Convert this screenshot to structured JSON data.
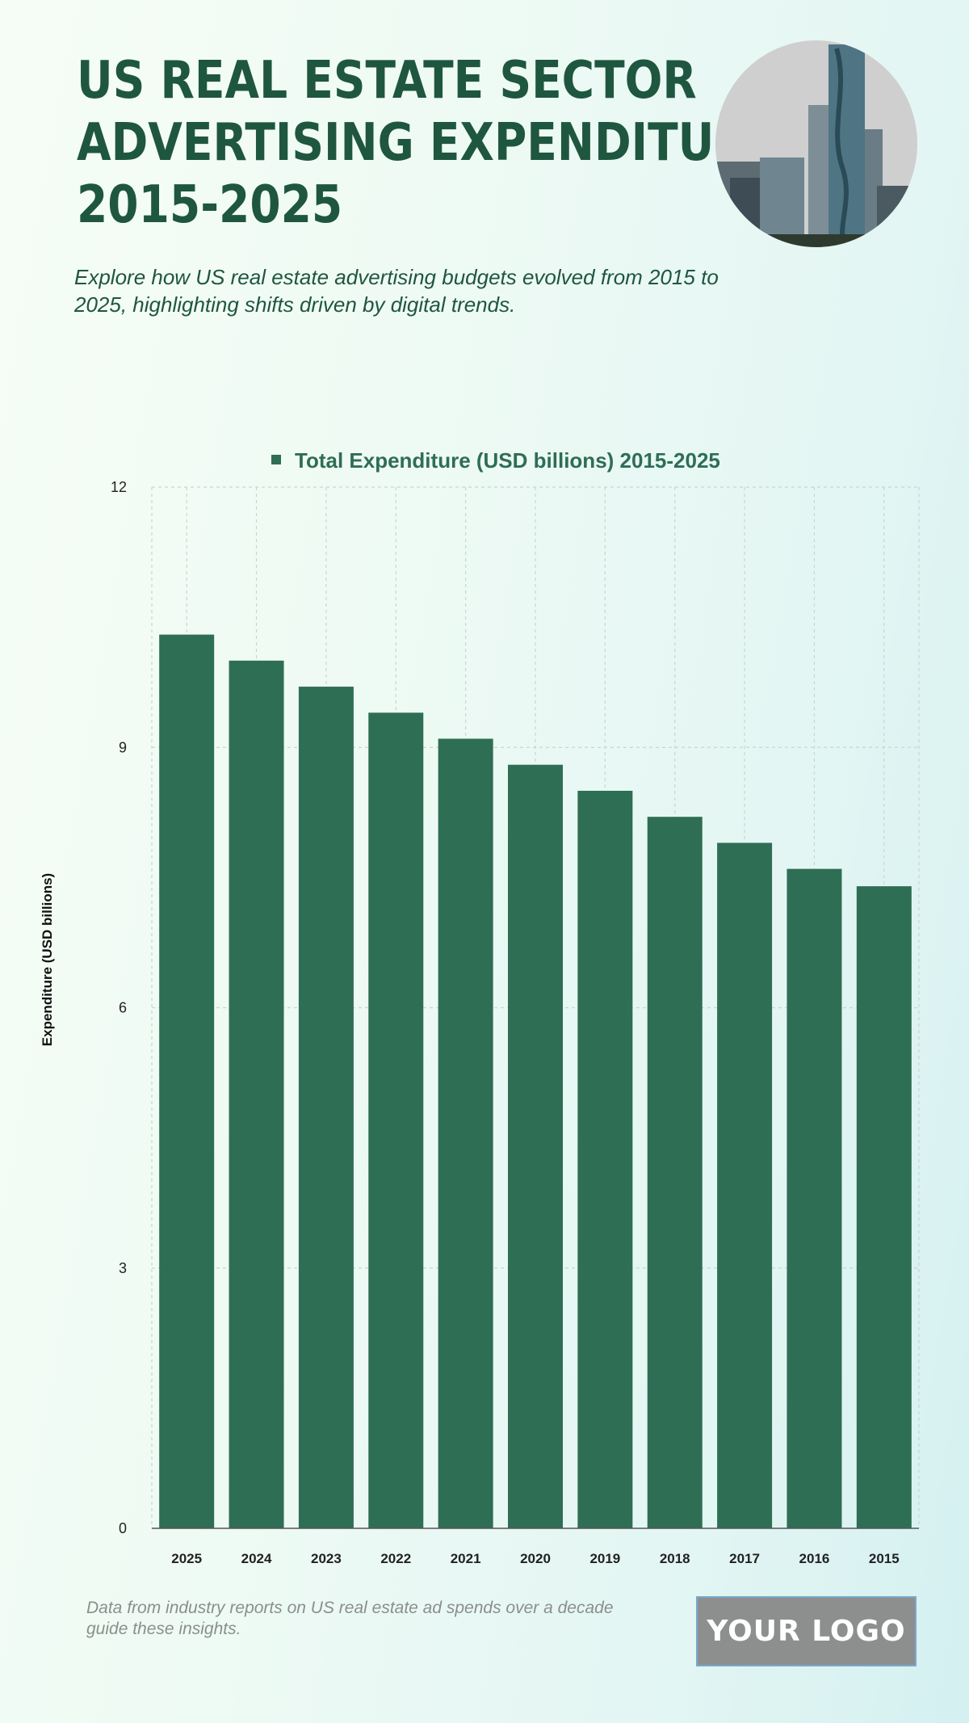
{
  "header": {
    "title_lines": [
      "US REAL ESTATE SECTOR",
      "ADVERTISING EXPENDITURE",
      "2015-2025"
    ],
    "subtitle": "Explore how US real estate advertising budgets evolved from 2015 to 2025, highlighting shifts driven by digital trends."
  },
  "footer": {
    "note": "Data from industry reports on US real estate ad spends over a decade guide these insights.",
    "logo_text": "YOUR LOGO"
  },
  "colors": {
    "bar": "#2e6e55",
    "title": "#1f5640",
    "grid": "#c9d6cf",
    "axis": "#555555"
  },
  "chart_data": {
    "type": "bar",
    "title": "",
    "legend": "Total Expenditure (USD billions) 2015-2025",
    "legend_position": "top-center",
    "categories": [
      "2025",
      "2024",
      "2023",
      "2022",
      "2021",
      "2020",
      "2019",
      "2018",
      "2017",
      "2016",
      "2015"
    ],
    "series": [
      {
        "name": "Total Expenditure (USD billions) 2015-2025",
        "values": [
          10.3,
          10.0,
          9.7,
          9.4,
          9.1,
          8.8,
          8.5,
          8.2,
          7.9,
          7.6,
          7.4
        ]
      }
    ],
    "xlabel": "",
    "ylabel": "Expenditure (USD billions)",
    "ylim": [
      0,
      12
    ],
    "yticks": [
      0,
      3,
      6,
      9,
      12
    ],
    "grid": true
  }
}
